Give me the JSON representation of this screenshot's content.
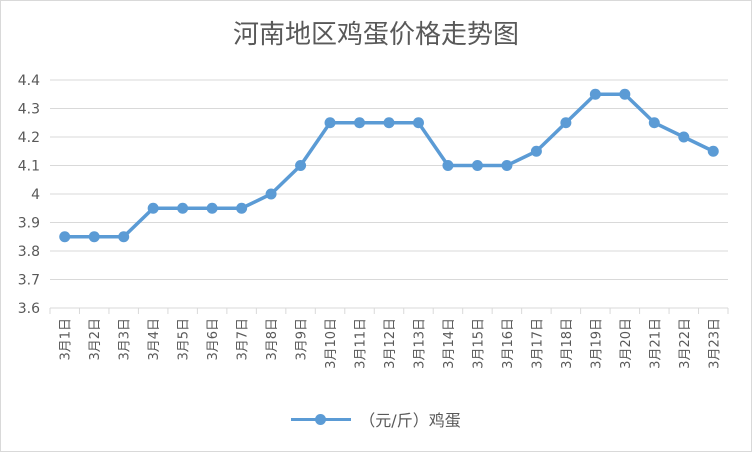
{
  "chart_data": {
    "type": "line",
    "title": "河南地区鸡蛋价格走势图",
    "xlabel": "",
    "ylabel": "",
    "categories": [
      "3月1日",
      "3月2日",
      "3月3日",
      "3月4日",
      "3月5日",
      "3月6日",
      "3月7日",
      "3月8日",
      "3月9日",
      "3月10日",
      "3月11日",
      "3月12日",
      "3月13日",
      "3月14日",
      "3月15日",
      "3月16日",
      "3月17日",
      "3月18日",
      "3月19日",
      "3月20日",
      "3月21日",
      "3月22日",
      "3月23日"
    ],
    "series": [
      {
        "name": "（元/斤）鸡蛋",
        "color": "#5b9bd5",
        "values": [
          3.85,
          3.85,
          3.85,
          3.95,
          3.95,
          3.95,
          3.95,
          4.0,
          4.1,
          4.25,
          4.25,
          4.25,
          4.25,
          4.1,
          4.1,
          4.1,
          4.15,
          4.25,
          4.35,
          4.35,
          4.25,
          4.2,
          4.15
        ]
      }
    ],
    "ylim": [
      3.6,
      4.4
    ],
    "yticks": [
      "3.6",
      "3.7",
      "3.8",
      "3.9",
      "4",
      "4.1",
      "4.2",
      "4.3",
      "4.4"
    ],
    "grid": true,
    "legend_position": "bottom"
  }
}
